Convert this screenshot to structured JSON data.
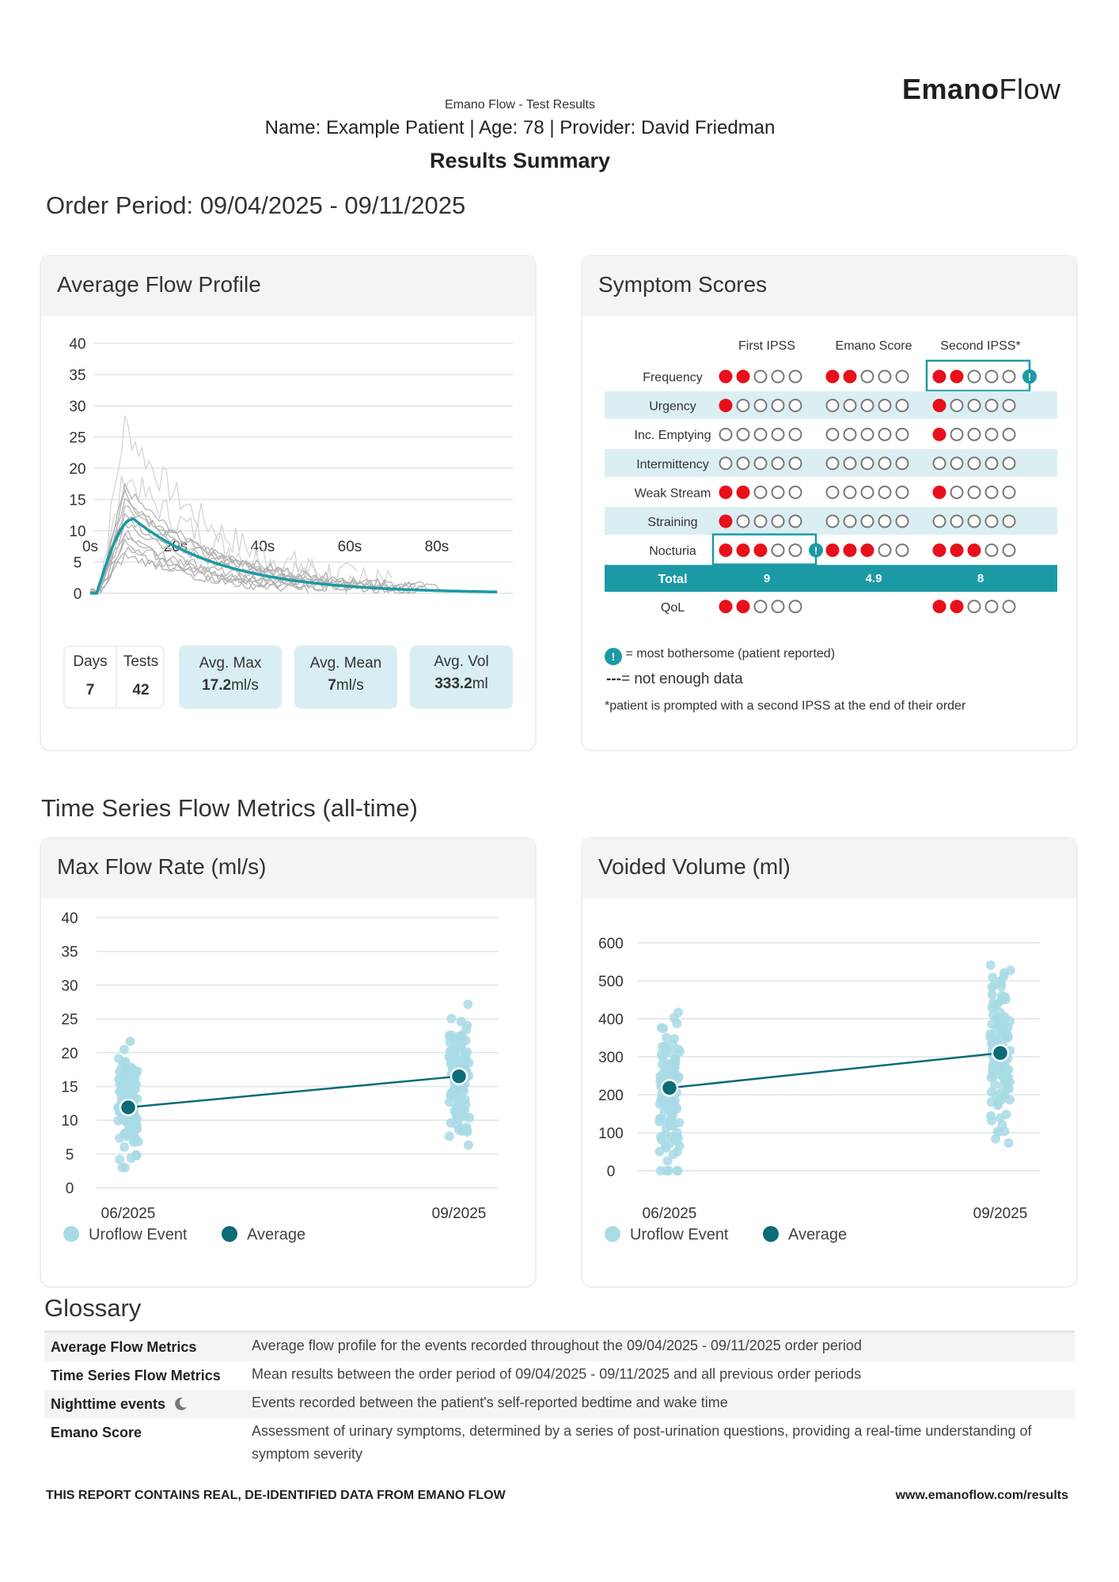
{
  "brand": {
    "bold": "Emano",
    "light": "Flow"
  },
  "header": {
    "subtitle": "Emano Flow - Test Results",
    "patient_line": "Name: Example Patient | Age: 78 | Provider: David Friedman",
    "title": "Results Summary",
    "order_period": "Order Period: 09/04/2025 - 09/11/2025"
  },
  "flow_profile": {
    "title": "Average Flow Profile",
    "y_ticks": [
      "40",
      "35",
      "30",
      "25",
      "20",
      "15",
      "10",
      "5",
      "0"
    ],
    "x_ticks": [
      "0s",
      "20s",
      "40s",
      "60s",
      "80s"
    ],
    "stats": {
      "days_label": "Days",
      "days_value": "7",
      "tests_label": "Tests",
      "tests_value": "42",
      "avg_max_label": "Avg. Max",
      "avg_max_value": "17.2",
      "avg_max_unit": "ml/s",
      "avg_mean_label": "Avg. Mean",
      "avg_mean_value": "7",
      "avg_mean_unit": "ml/s",
      "avg_vol_label": "Avg. Vol",
      "avg_vol_value": "333.2",
      "avg_vol_unit": "ml"
    }
  },
  "symptoms": {
    "title": "Symptom Scores",
    "columns": [
      "First IPSS",
      "Emano Score",
      "Second IPSS*"
    ],
    "rows": [
      {
        "label": "Frequency",
        "scores": [
          2,
          2,
          2
        ],
        "flag": 2
      },
      {
        "label": "Urgency",
        "scores": [
          1,
          0,
          1
        ],
        "flag": -1
      },
      {
        "label": "Inc. Emptying",
        "scores": [
          0,
          0,
          1
        ],
        "flag": -1
      },
      {
        "label": "Intermittency",
        "scores": [
          0,
          0,
          0
        ],
        "flag": -1
      },
      {
        "label": "Weak Stream",
        "scores": [
          2,
          0,
          1
        ],
        "flag": -1
      },
      {
        "label": "Straining",
        "scores": [
          1,
          0,
          0
        ],
        "flag": -1
      },
      {
        "label": "Nocturia",
        "scores": [
          3,
          3,
          3
        ],
        "flag": 0
      }
    ],
    "total_label": "Total",
    "totals": [
      "9",
      "4.9",
      "8"
    ],
    "qol": {
      "label": "QoL",
      "scores": [
        2,
        null,
        2
      ]
    },
    "legend_flag": "= most bothersome (patient reported)",
    "legend_dash": "---",
    "legend_nodata": "= not enough data",
    "footnote": "*patient is prompted with a second IPSS at the end of their order",
    "colors": {
      "red": "#e8101a",
      "teal": "#1b9aa5",
      "empty": "#777777"
    }
  },
  "timeseries": {
    "title": "Time Series Flow Metrics (all-time)",
    "legend_event": "Uroflow Event",
    "legend_avg": "Average",
    "max_flow": {
      "title": "Max Flow Rate (ml/s)",
      "y_ticks": [
        "40",
        "35",
        "30",
        "25",
        "20",
        "15",
        "10",
        "5",
        "0"
      ],
      "x_ticks": [
        "06/2025",
        "09/2025"
      ],
      "averages": [
        11.9,
        16.5
      ]
    },
    "volume": {
      "title": "Voided Volume (ml)",
      "y_ticks": [
        "600",
        "500",
        "400",
        "300",
        "200",
        "100",
        "0"
      ],
      "x_ticks": [
        "06/2025",
        "09/2025"
      ],
      "averages": [
        218,
        310
      ]
    }
  },
  "glossary": {
    "title": "Glossary",
    "items": [
      {
        "term": "Average Flow Metrics",
        "def": "Average flow profile for the events recorded throughout the 09/04/2025 - 09/11/2025 order period"
      },
      {
        "term": "Time Series Flow Metrics",
        "def": "Mean results between the order period of 09/04/2025 - 09/11/2025 and all previous order periods"
      },
      {
        "term": "Nighttime events",
        "def": "Events recorded between the patient's self-reported bedtime and wake time"
      },
      {
        "term": "Emano Score",
        "def": "Assessment of urinary symptoms, determined by a series of post-urination questions, providing a real-time understanding of symptom severity"
      }
    ]
  },
  "footer": {
    "left": "THIS REPORT CONTAINS REAL, DE-IDENTIFIED DATA FROM EMANO FLOW",
    "right": "www.emanoflow.com/results"
  }
}
